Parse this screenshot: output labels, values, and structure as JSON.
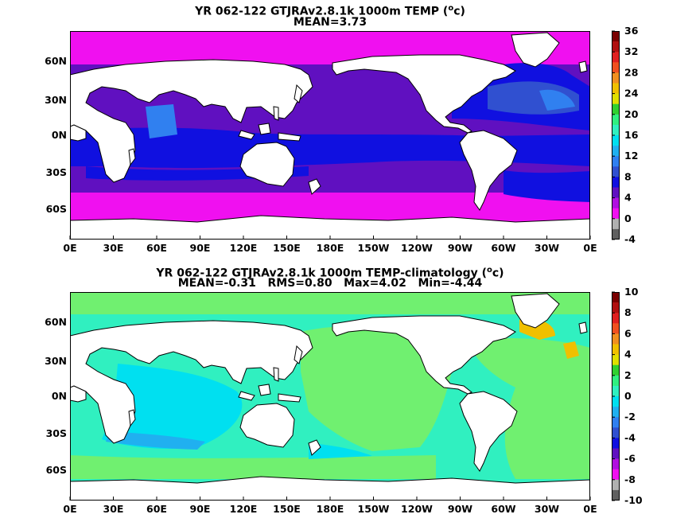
{
  "colors": {
    "land": "#ffffff",
    "coast": "#000000"
  },
  "chart_data": [
    {
      "type": "heatmap",
      "title": "YR 062-122 GTJRAv2.8.1k 1000m TEMP (",
      "title_sup": "o",
      "title_end": "c)",
      "subtitle": "MEAN=3.73",
      "x_ticks": [
        "0E",
        "30E",
        "60E",
        "90E",
        "120E",
        "150E",
        "180E",
        "150W",
        "120W",
        "90W",
        "60W",
        "30W",
        "0E"
      ],
      "y_ticks": [
        "60N",
        "30N",
        "0N",
        "30S",
        "60S"
      ],
      "colorbar": {
        "labels": [
          "36",
          "32",
          "28",
          "24",
          "20",
          "16",
          "12",
          "8",
          "4",
          "0",
          "-4"
        ],
        "colors": [
          "#7a0000",
          "#b01010",
          "#e02020",
          "#f05020",
          "#f09020",
          "#f0c000",
          "#e0e000",
          "#30d030",
          "#30f080",
          "#30f0c0",
          "#00e0f0",
          "#20b0f0",
          "#3080f0",
          "#3050d0",
          "#1010e0",
          "#6010c0",
          "#b010e0",
          "#f010f0",
          "#b0b0b0",
          "#606060"
        ]
      }
    },
    {
      "type": "heatmap",
      "title": "YR 062-122 GTJRAv2.8.1k 1000m TEMP-climatology (",
      "title_sup": "o",
      "title_end": "c)",
      "subtitle": "MEAN=-0.31   RMS=0.80   Max=4.02   Min=-4.44",
      "x_ticks": [
        "0E",
        "30E",
        "60E",
        "90E",
        "120E",
        "150E",
        "180E",
        "150W",
        "120W",
        "90W",
        "60W",
        "30W",
        "0E"
      ],
      "y_ticks": [
        "60N",
        "30N",
        "0N",
        "30S",
        "60S"
      ],
      "colorbar": {
        "labels": [
          "10",
          "8",
          "6",
          "4",
          "2",
          "0",
          "-2",
          "-4",
          "-6",
          "-8",
          "-10"
        ],
        "colors": [
          "#7a0000",
          "#b01010",
          "#e02020",
          "#f05020",
          "#f09020",
          "#f0c000",
          "#e0e000",
          "#30d030",
          "#30f080",
          "#30f0c0",
          "#00e0f0",
          "#20b0f0",
          "#3080f0",
          "#3050d0",
          "#1010e0",
          "#6010c0",
          "#b010e0",
          "#f010f0",
          "#b0b0b0",
          "#606060"
        ]
      }
    }
  ]
}
